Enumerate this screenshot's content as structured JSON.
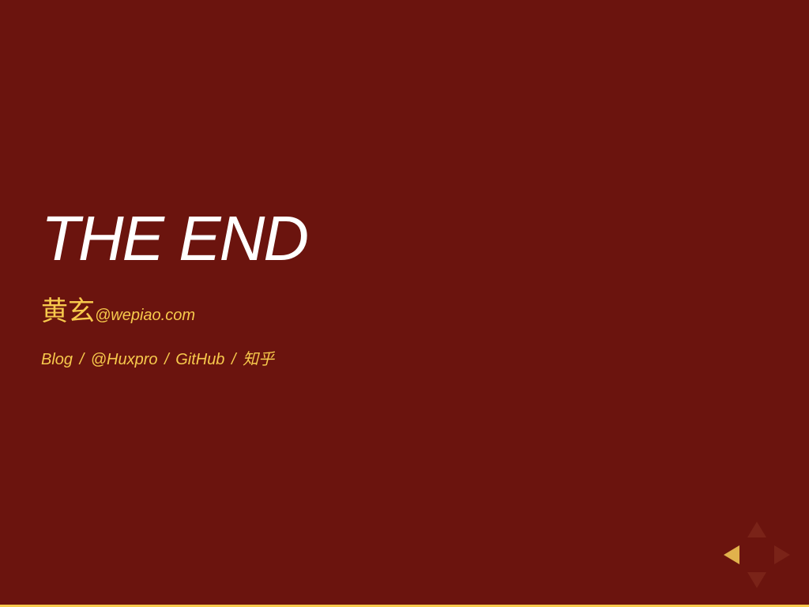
{
  "slide": {
    "title": "THE END",
    "author": {
      "name": "黄玄",
      "email": "@wepiao.com"
    },
    "links": [
      {
        "label": "Blog"
      },
      {
        "label": "@Huxpro"
      },
      {
        "label": "GitHub"
      },
      {
        "label": "知乎"
      }
    ],
    "separator": "/"
  },
  "controls": {
    "up_icon": "arrow-up-icon",
    "down_icon": "arrow-down-icon",
    "left_icon": "arrow-left-icon",
    "right_icon": "arrow-right-icon",
    "enabled": {
      "up": false,
      "down": false,
      "left": true,
      "right": false
    }
  },
  "progress": {
    "fraction": 1.0
  },
  "colors": {
    "background": "#6b140e",
    "title": "#ffffff",
    "accent": "#f7c94c",
    "control_enabled": "#e1b24c",
    "control_disabled": "#7a2318"
  }
}
